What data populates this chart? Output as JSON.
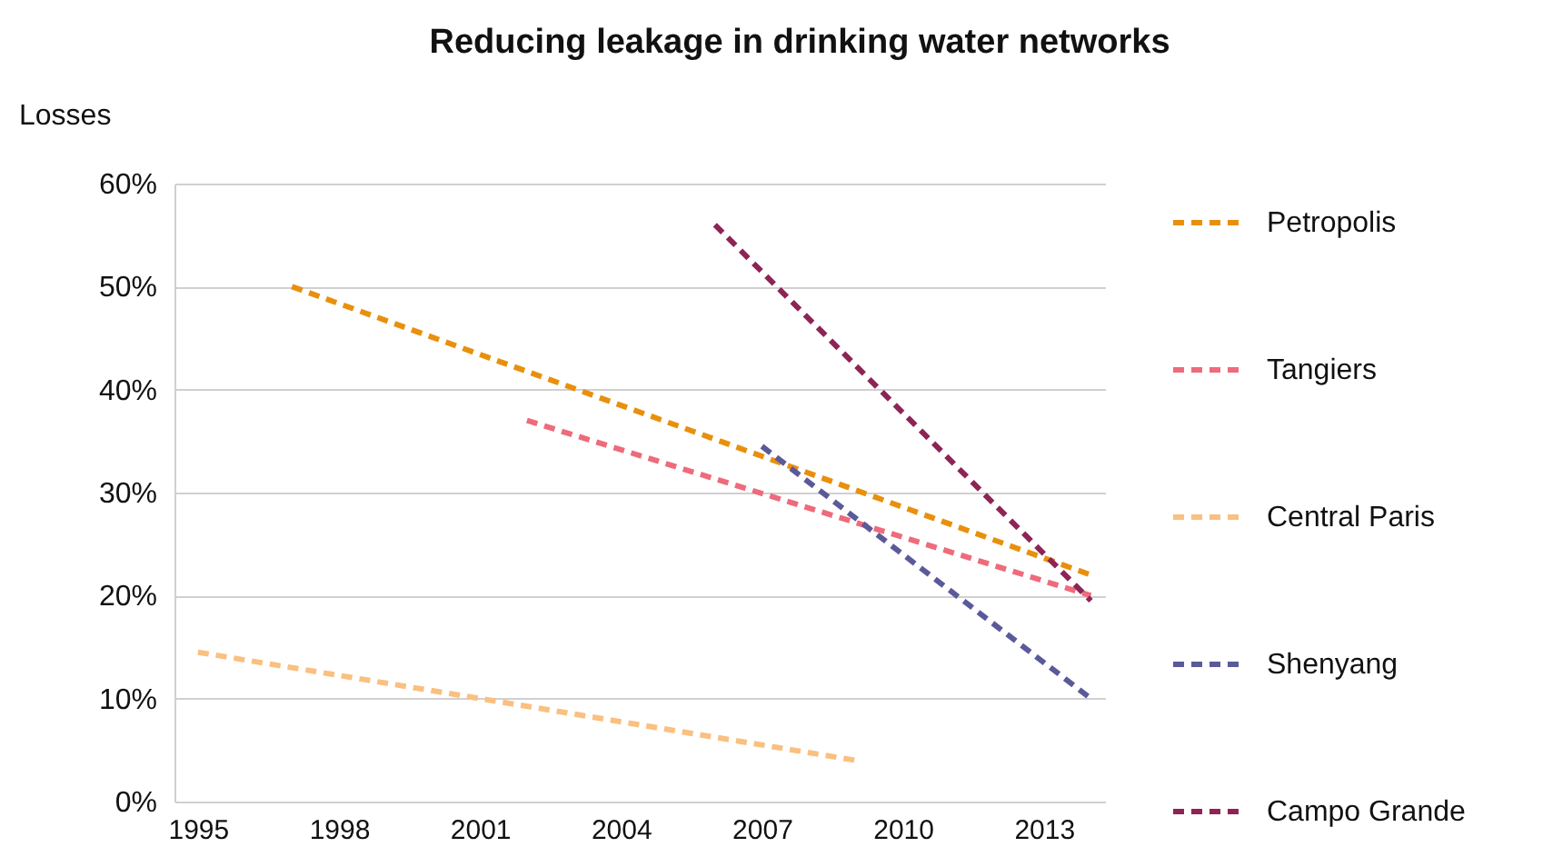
{
  "chart_data": {
    "type": "line",
    "title": "Reducing leakage in drinking water networks",
    "ylabel": "Losses",
    "xlim": [
      1994.5,
      2014.3
    ],
    "xticks": [
      1995,
      1998,
      2001,
      2004,
      2007,
      2010,
      2013
    ],
    "ylim": [
      0,
      60
    ],
    "yticks": [
      {
        "value": 0,
        "label": "0%"
      },
      {
        "value": 10,
        "label": "10%"
      },
      {
        "value": 20,
        "label": "20%"
      },
      {
        "value": 30,
        "label": "30%"
      },
      {
        "value": 40,
        "label": "40%"
      },
      {
        "value": 50,
        "label": "50%"
      },
      {
        "value": 60,
        "label": "60%"
      }
    ],
    "grid": "y",
    "legend": "right",
    "line_style": "dashed",
    "marker": "none",
    "series": [
      {
        "name": "Petropolis",
        "color": "#e8900c",
        "x": [
          1997,
          2014
        ],
        "values": [
          50,
          22
        ]
      },
      {
        "name": "Tangiers",
        "color": "#ee6b7b",
        "x": [
          2002,
          2014
        ],
        "values": [
          37,
          20
        ]
      },
      {
        "name": "Central Paris",
        "color": "#f9c080",
        "x": [
          1995,
          2009
        ],
        "values": [
          14.5,
          4
        ]
      },
      {
        "name": "Shenyang",
        "color": "#5a5a9a",
        "x": [
          2007,
          2014
        ],
        "values": [
          34.5,
          10
        ]
      },
      {
        "name": "Campo Grande",
        "color": "#8e2456",
        "x": [
          2006,
          2014
        ],
        "values": [
          56,
          19.5
        ]
      }
    ]
  }
}
